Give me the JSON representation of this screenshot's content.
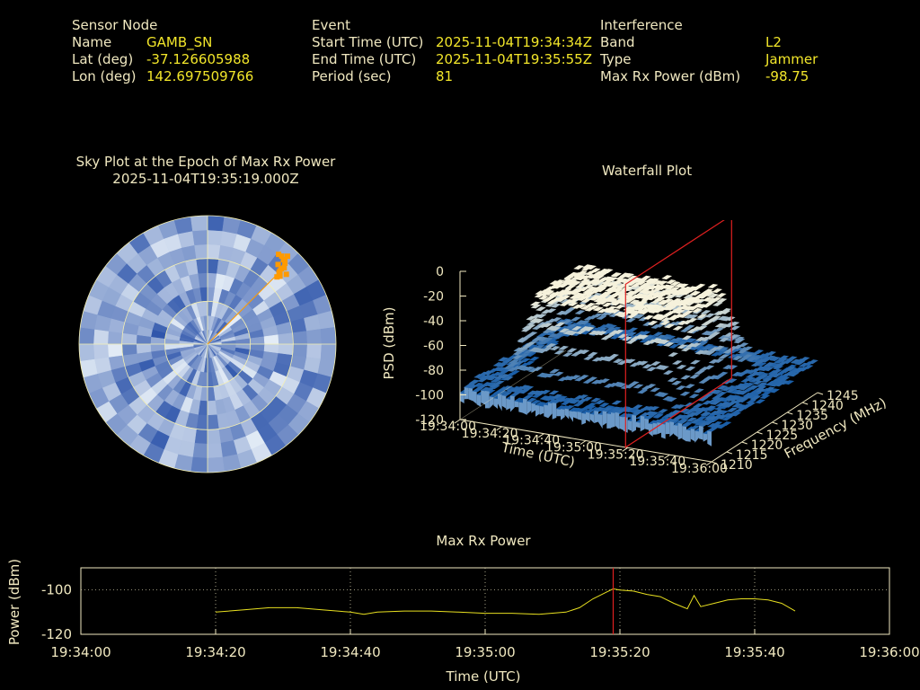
{
  "header": {
    "sensor": {
      "heading": "Sensor Node",
      "name_label": "Name",
      "name_value": "GAMB_SN",
      "lat_label": "Lat (deg)",
      "lat_value": "-37.126605988",
      "lon_label": "Lon (deg)",
      "lon_value": "142.697509766"
    },
    "event": {
      "heading": "Event",
      "start_label": "Start Time (UTC)",
      "start_value": "2025-11-04T19:34:34Z",
      "end_label": "End Time (UTC)",
      "end_value": "2025-11-04T19:35:55Z",
      "period_label": "Period (sec)",
      "period_value": "81"
    },
    "interference": {
      "heading": "Interference",
      "band_label": "Band",
      "band_value": "L2",
      "type_label": "Type",
      "type_value": "Jammer",
      "maxrx_label": "Max Rx Power (dBm)",
      "maxrx_value": "-98.75"
    }
  },
  "colors": {
    "label": "#f0e8c0",
    "value": "#f2e62a",
    "marker_line": "#e02020",
    "trace": "#e8e020",
    "sky_light": "#e8f0f8",
    "sky_dark": "#2850a8",
    "jammer": "#ff9a00"
  },
  "chart_data": [
    {
      "type": "heatmap",
      "name": "sky-plot",
      "title": "Sky Plot at the Epoch of Max Rx Power",
      "subtitle": "2025-11-04T19:35:19.000Z",
      "jammer_direction": {
        "azimuth_deg": 45,
        "elevation_deg": 15
      }
    },
    {
      "type": "area",
      "name": "waterfall",
      "title": "Waterfall Plot",
      "zlabel": "PSD (dBm)",
      "xlabel": "Time (UTC)",
      "ylabel": "Frequency (MHz)",
      "z_ticks": [
        "0",
        "-20",
        "-40",
        "-60",
        "-80",
        "-100",
        "-120"
      ],
      "x_ticks": [
        "19:34:00",
        "19:34:20",
        "19:34:40",
        "19:35:00",
        "19:35:20",
        "19:35:40",
        "19:36:00"
      ],
      "y_ticks": [
        "1210",
        "1215",
        "1220",
        "1225",
        "1230",
        "1235",
        "1240",
        "1245"
      ],
      "zlim": [
        -120,
        0
      ],
      "marker_time": "19:35:19"
    },
    {
      "type": "line",
      "name": "max-rx-power",
      "title": "Max Rx Power",
      "xlabel": "Time (UTC)",
      "ylabel": "Power (dBm)",
      "y_ticks": [
        "-100",
        "-120"
      ],
      "x_ticks": [
        "19:34:00",
        "19:34:20",
        "19:34:40",
        "19:35:00",
        "19:35:20",
        "19:35:40",
        "19:36:00"
      ],
      "ylim": [
        -120,
        -90
      ],
      "xlim_sec": [
        0,
        120
      ],
      "marker_sec": 79,
      "series": [
        {
          "x": [
            20,
            24,
            28,
            32,
            36,
            40,
            42,
            44,
            48,
            52,
            56,
            60,
            64,
            68,
            72,
            74,
            76,
            78,
            79,
            80,
            82,
            84,
            86,
            88,
            90,
            91,
            92,
            94,
            96,
            98,
            100,
            102,
            104,
            106
          ],
          "y": [
            -110,
            -109,
            -108,
            -108,
            -109,
            -110,
            -111,
            -110,
            -109.5,
            -109.5,
            -110,
            -110.5,
            -110.5,
            -111,
            -110,
            -108,
            -104,
            -101,
            -99.5,
            -100,
            -100.5,
            -102,
            -103,
            -106,
            -108.5,
            -102.5,
            -107.5,
            -106,
            -104.5,
            -104,
            -104,
            -104.5,
            -106,
            -109.5
          ]
        }
      ]
    }
  ]
}
